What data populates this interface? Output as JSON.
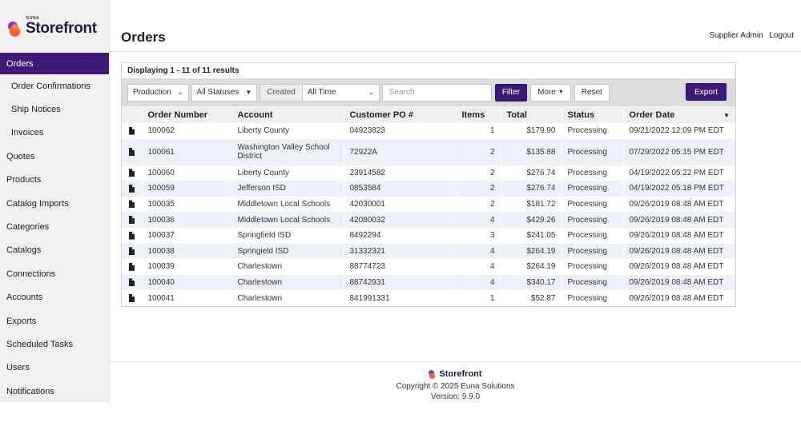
{
  "brand": {
    "small": "EUNA",
    "name": "Storefront"
  },
  "header": {
    "title": "Orders",
    "user_label": "Supplier Admin",
    "logout_label": "Logout"
  },
  "sidebar": {
    "items": [
      {
        "label": "Orders",
        "active": true
      },
      {
        "label": "Order Confirmations",
        "sub": true
      },
      {
        "label": "Ship Notices",
        "sub": true
      },
      {
        "label": "Invoices",
        "sub": true
      },
      {
        "label": "Quotes"
      },
      {
        "label": "Products"
      },
      {
        "label": "Catalog Imports"
      },
      {
        "label": "Categories"
      },
      {
        "label": "Catalogs"
      },
      {
        "label": "Connections"
      },
      {
        "label": "Accounts"
      },
      {
        "label": "Exports"
      },
      {
        "label": "Scheduled Tasks"
      },
      {
        "label": "Users"
      },
      {
        "label": "Notifications"
      }
    ]
  },
  "results_text": "Displaying 1 - 11 of 11 results",
  "toolbar": {
    "environment": "Production",
    "status": "All Statuses",
    "created_label": "Created",
    "time_range": "All Time",
    "search_placeholder": "Search",
    "filter_label": "Filter",
    "more_label": "More",
    "reset_label": "Reset",
    "export_label": "Export"
  },
  "table": {
    "headers": [
      "Order Number",
      "Account",
      "Customer PO #",
      "Items",
      "Total",
      "Status",
      "Order Date"
    ],
    "rows": [
      {
        "order": "100062",
        "account": "Liberty County",
        "po": "04923823",
        "items": "1",
        "total": "$179.90",
        "status": "Processing",
        "date": "09/21/2022 12:09 PM EDT"
      },
      {
        "order": "100061",
        "account": "Washington Valley School District",
        "po": "72922A",
        "items": "2",
        "total": "$135.88",
        "status": "Processing",
        "date": "07/29/2022 05:15 PM EDT"
      },
      {
        "order": "100060",
        "account": "Liberty County",
        "po": "23914582",
        "items": "2",
        "total": "$276.74",
        "status": "Processing",
        "date": "04/19/2022 05:22 PM EDT"
      },
      {
        "order": "100059",
        "account": "Jefferson ISD",
        "po": "0853584",
        "items": "2",
        "total": "$276.74",
        "status": "Processing",
        "date": "04/19/2022 05:18 PM EDT"
      },
      {
        "order": "100035",
        "account": "Middletown Local Schools",
        "po": "42030001",
        "items": "2",
        "total": "$181.72",
        "status": "Processing",
        "date": "09/26/2019 08:48 AM EDT"
      },
      {
        "order": "100036",
        "account": "Middletown Local Schools",
        "po": "42080032",
        "items": "4",
        "total": "$429.26",
        "status": "Processing",
        "date": "09/26/2019 08:48 AM EDT"
      },
      {
        "order": "100037",
        "account": "Springfield ISD",
        "po": "8492294",
        "items": "3",
        "total": "$241.05",
        "status": "Processing",
        "date": "09/26/2019 08:48 AM EDT"
      },
      {
        "order": "100038",
        "account": "Springield ISD",
        "po": "31332321",
        "items": "4",
        "total": "$264.19",
        "status": "Processing",
        "date": "09/26/2019 08:48 AM EDT"
      },
      {
        "order": "100039",
        "account": "Charlestown",
        "po": "88774723",
        "items": "4",
        "total": "$264.19",
        "status": "Processing",
        "date": "09/26/2019 08:48 AM EDT"
      },
      {
        "order": "100040",
        "account": "Charlestown",
        "po": "88742931",
        "items": "4",
        "total": "$340.17",
        "status": "Processing",
        "date": "09/26/2019 08:48 AM EDT"
      },
      {
        "order": "100041",
        "account": "Charlestown",
        "po": "841991331",
        "items": "1",
        "total": "$52.87",
        "status": "Processing",
        "date": "09/26/2019 08:48 AM EDT"
      }
    ]
  },
  "footer": {
    "brand": "Storefront",
    "copyright": "Copyright © 2025 Euna Solutions",
    "version": "Version: 9.9.0"
  },
  "colors": {
    "accent": "#3d1a78",
    "row_alt": "#eef1f9"
  }
}
